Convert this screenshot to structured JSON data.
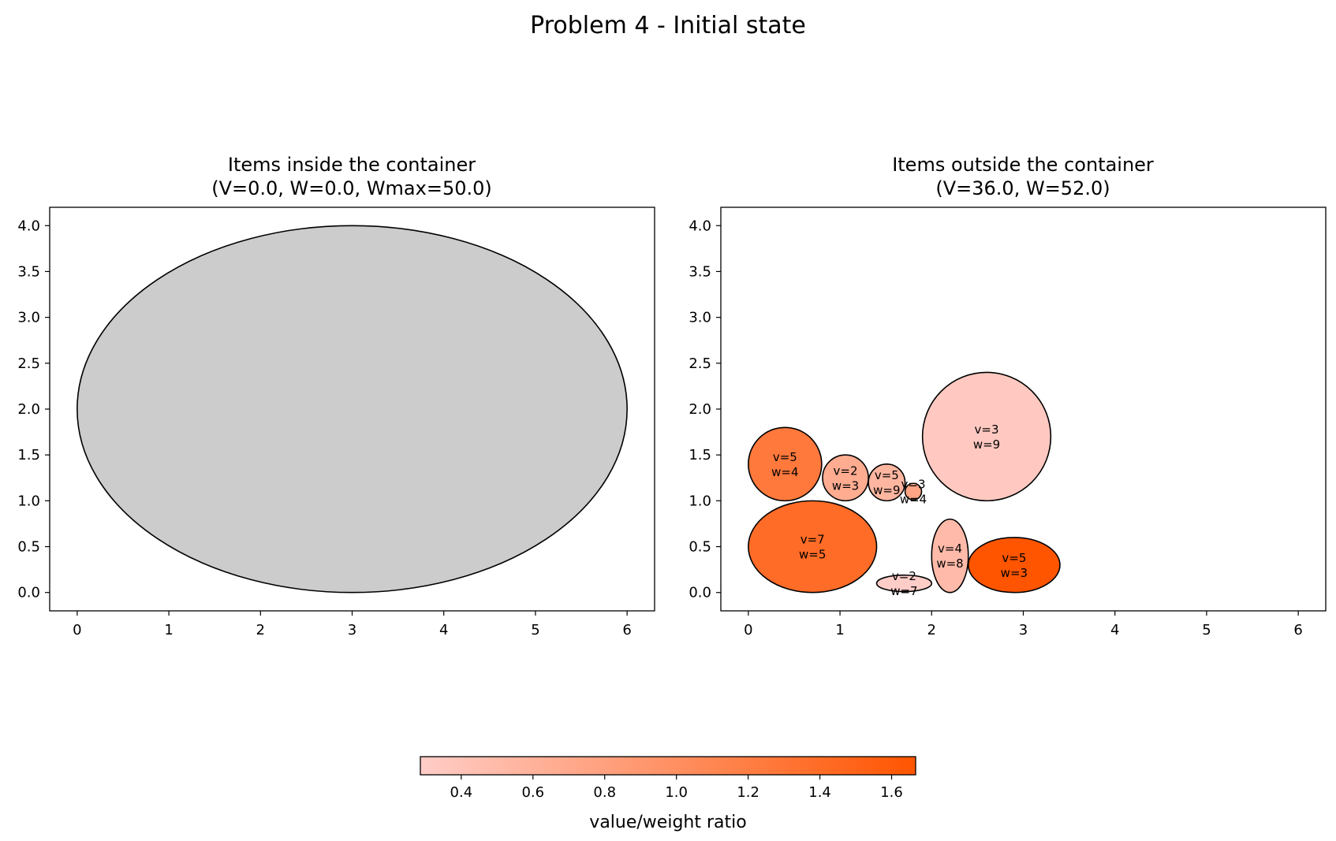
{
  "title": "Problem 4 - Initial state",
  "chart_data": [
    {
      "type": "scatter",
      "panel": "inside",
      "title": "Items inside the container",
      "subtitle": "(V=0.0, W=0.0, Wmax=50.0)",
      "xlabel": "",
      "ylabel": "",
      "xlim": [
        -0.3,
        6.3
      ],
      "ylim": [
        -0.2,
        4.2
      ],
      "xticks": [
        0,
        1,
        2,
        3,
        4,
        5,
        6
      ],
      "yticks": [
        0.0,
        0.5,
        1.0,
        1.5,
        2.0,
        2.5,
        3.0,
        3.5,
        4.0
      ],
      "grid": false,
      "container": {
        "cx": 3.0,
        "cy": 2.0,
        "rx": 3.0,
        "ry": 2.0,
        "color": "#cccccc"
      },
      "items": []
    },
    {
      "type": "scatter",
      "panel": "outside",
      "title": "Items outside the container",
      "subtitle": "(V=36.0, W=52.0)",
      "xlabel": "",
      "ylabel": "",
      "xlim": [
        -0.3,
        6.3
      ],
      "ylim": [
        -0.2,
        4.2
      ],
      "xticks": [
        0,
        1,
        2,
        3,
        4,
        5,
        6
      ],
      "yticks": [
        0.0,
        0.5,
        1.0,
        1.5,
        2.0,
        2.5,
        3.0,
        3.5,
        4.0
      ],
      "grid": false,
      "items": [
        {
          "v": 5,
          "w": 4,
          "label_v": "v=5",
          "label_w": "w=4",
          "cx": 0.4,
          "cy": 1.4,
          "rx": 0.4,
          "ry": 0.4
        },
        {
          "v": 2,
          "w": 3,
          "label_v": "v=2",
          "label_w": "w=3",
          "cx": 1.06,
          "cy": 1.25,
          "rx": 0.25,
          "ry": 0.25
        },
        {
          "v": 5,
          "w": 9,
          "label_v": "v=5",
          "label_w": "w=9",
          "cx": 1.51,
          "cy": 1.2,
          "rx": 0.2,
          "ry": 0.2
        },
        {
          "v": 3,
          "w": 4,
          "label_v": "v=3",
          "label_w": "w=4",
          "cx": 1.8,
          "cy": 1.1,
          "rx": 0.09,
          "ry": 0.09
        },
        {
          "v": 3,
          "w": 9,
          "label_v": "v=3",
          "label_w": "w=9",
          "cx": 2.6,
          "cy": 1.7,
          "rx": 0.7,
          "ry": 0.7
        },
        {
          "v": 7,
          "w": 5,
          "label_v": "v=7",
          "label_w": "w=5",
          "cx": 0.7,
          "cy": 0.5,
          "rx": 0.7,
          "ry": 0.5
        },
        {
          "v": 2,
          "w": 7,
          "label_v": "v=2",
          "label_w": "w=7",
          "cx": 1.7,
          "cy": 0.1,
          "rx": 0.3,
          "ry": 0.09
        },
        {
          "v": 4,
          "w": 8,
          "label_v": "v=4",
          "label_w": "w=8",
          "cx": 2.2,
          "cy": 0.4,
          "rx": 0.2,
          "ry": 0.4
        },
        {
          "v": 5,
          "w": 3,
          "label_v": "v=5",
          "label_w": "w=3",
          "cx": 2.9,
          "cy": 0.3,
          "rx": 0.5,
          "ry": 0.3
        }
      ]
    }
  ],
  "colorbar": {
    "label": "value/weight ratio",
    "min": 0.286,
    "max": 1.667,
    "ticks": [
      0.4,
      0.6,
      0.8,
      1.0,
      1.2,
      1.4,
      1.6
    ],
    "color_low": "#ffcdc8",
    "color_high": "#ff5500"
  }
}
